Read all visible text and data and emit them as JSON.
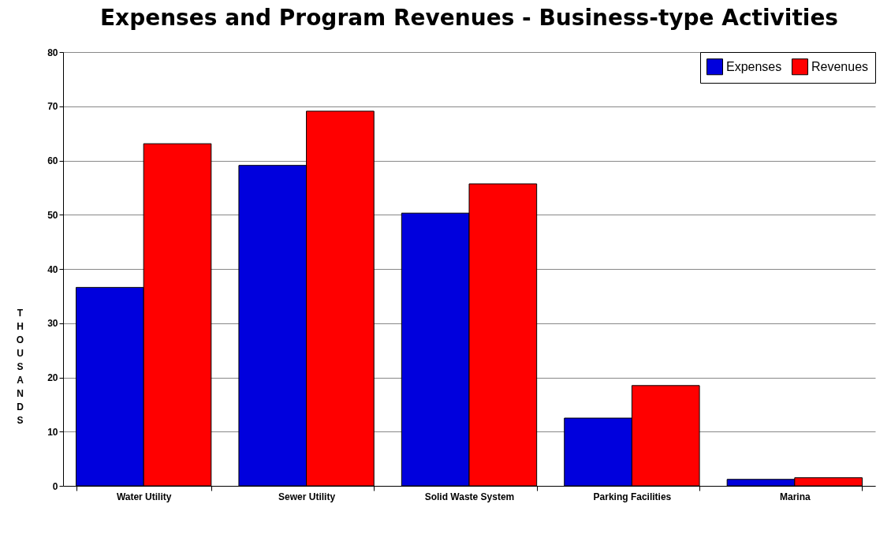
{
  "chart_data": {
    "type": "bar",
    "title": "Expenses and Program Revenues - Business-type Activities",
    "ylabel": "THOUSANDS",
    "categories": [
      "Water Utility",
      "Sewer Utility",
      "Solid Waste System",
      "Parking Facilities",
      "Marina"
    ],
    "series": [
      {
        "name": "Expenses",
        "color": "#0000dd",
        "values": [
          36.6,
          59.1,
          50.3,
          12.5,
          1.2
        ]
      },
      {
        "name": "Revenues",
        "color": "#ff0000",
        "values": [
          63.1,
          69.1,
          55.7,
          18.5,
          1.5
        ]
      }
    ],
    "ylim": [
      0,
      80
    ],
    "yticks": [
      0,
      10,
      20,
      30,
      40,
      50,
      60,
      70,
      80
    ],
    "grid": "y",
    "legend": "top right"
  }
}
